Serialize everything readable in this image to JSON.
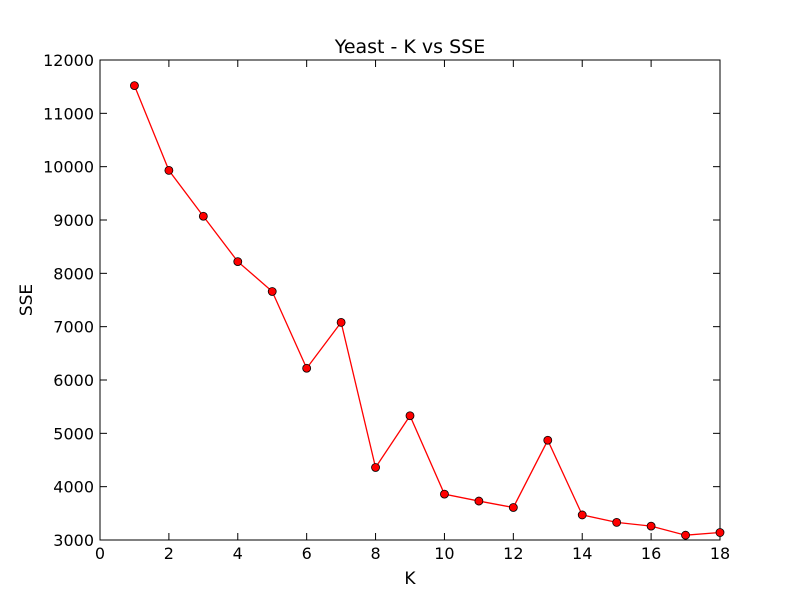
{
  "chart_data": {
    "type": "line",
    "title": "Yeast - K vs SSE",
    "xlabel": "K",
    "ylabel": "SSE",
    "xlim": [
      0,
      18
    ],
    "ylim": [
      3000,
      12000
    ],
    "xticks": [
      0,
      2,
      4,
      6,
      8,
      10,
      12,
      14,
      16,
      18
    ],
    "yticks": [
      3000,
      4000,
      5000,
      6000,
      7000,
      8000,
      9000,
      10000,
      11000,
      12000
    ],
    "grid": false,
    "legend": "none",
    "series": [
      {
        "color": "#ff0000",
        "marker": "circle",
        "x": [
          1,
          2,
          3,
          4,
          5,
          6,
          7,
          8,
          9,
          10,
          11,
          12,
          13,
          14,
          15,
          16,
          17,
          18
        ],
        "y": [
          11520,
          9930,
          9070,
          8220,
          7660,
          6220,
          7080,
          4360,
          5330,
          3860,
          3730,
          3610,
          4870,
          3470,
          3330,
          3260,
          3090,
          3140
        ]
      }
    ]
  }
}
